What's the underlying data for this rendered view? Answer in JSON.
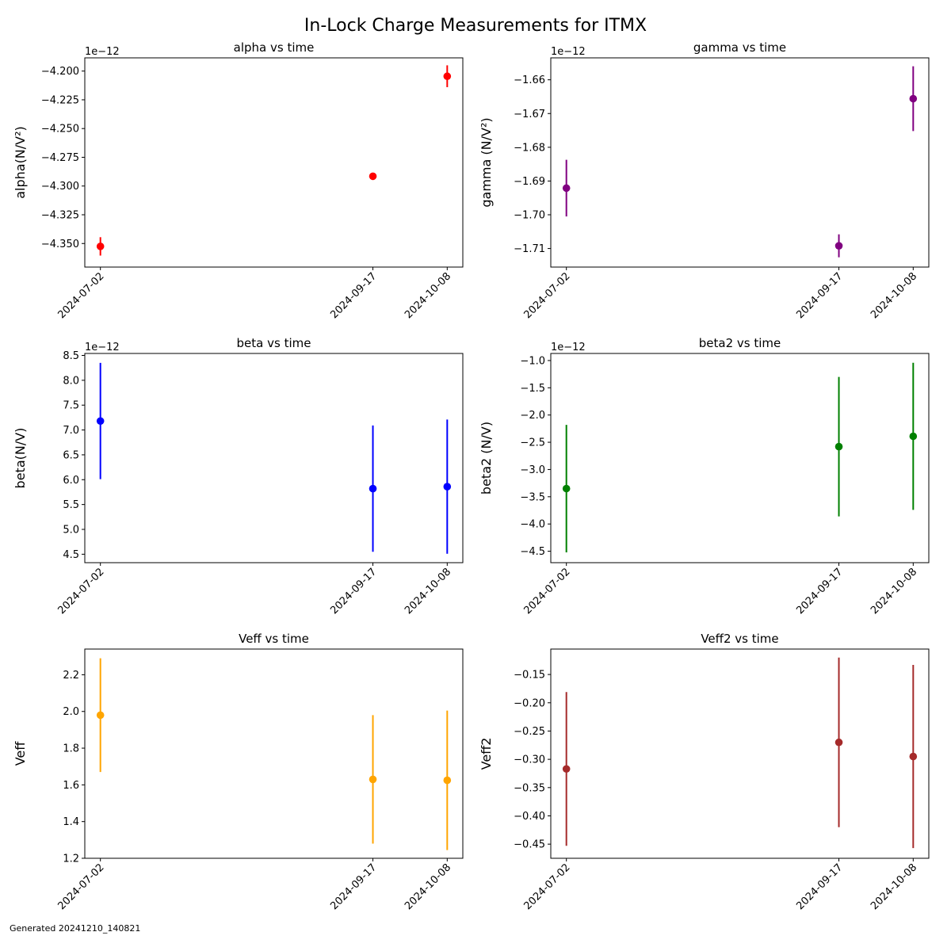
{
  "suptitle": "In-Lock Charge Measurements for ITMX",
  "footer": "Generated 20241210_140821",
  "chart_data": [
    {
      "type": "scatter",
      "title": "alpha vs time",
      "xlabel": "",
      "ylabel": "alpha(N/V²)",
      "offset_label": "1e−12",
      "color": "#ff0000",
      "x": [
        "2024-07-02",
        "2024-09-17",
        "2024-10-08"
      ],
      "y": [
        -4.3525,
        -4.2915,
        -4.2045
      ],
      "yerr": [
        0.008,
        0.003,
        0.0095
      ],
      "ylim": [
        -4.3705,
        -4.1885
      ],
      "yticks": [
        -4.35,
        -4.325,
        -4.3,
        -4.275,
        -4.25,
        -4.225,
        -4.2
      ],
      "yticklabels": [
        "−4.350",
        "−4.325",
        "−4.300",
        "−4.275",
        "−4.250",
        "−4.225",
        "−4.200"
      ]
    },
    {
      "type": "scatter",
      "title": "gamma vs time",
      "xlabel": "",
      "ylabel": "gamma (N/V²)",
      "offset_label": "1e−12",
      "color": "#800080",
      "x": [
        "2024-07-02",
        "2024-09-17",
        "2024-10-08"
      ],
      "y": [
        -1.6921,
        -1.7092,
        -1.6656
      ],
      "yerr": [
        0.0084,
        0.0034,
        0.0096
      ],
      "ylim": [
        -1.7155,
        -1.6535
      ],
      "yticks": [
        -1.71,
        -1.7,
        -1.69,
        -1.68,
        -1.67,
        -1.66
      ],
      "yticklabels": [
        "−1.71",
        "−1.70",
        "−1.69",
        "−1.68",
        "−1.67",
        "−1.66"
      ]
    },
    {
      "type": "scatter",
      "title": "beta vs time",
      "xlabel": "",
      "ylabel": "beta(N/V)",
      "offset_label": "1e−12",
      "color": "#0000ff",
      "x": [
        "2024-07-02",
        "2024-09-17",
        "2024-10-08"
      ],
      "y": [
        7.18,
        5.82,
        5.86
      ],
      "yerr": [
        1.17,
        1.27,
        1.35
      ],
      "ylim": [
        4.33,
        8.54
      ],
      "yticks": [
        4.5,
        5.0,
        5.5,
        6.0,
        6.5,
        7.0,
        7.5,
        8.0,
        8.5
      ],
      "yticklabels": [
        "4.5",
        "5.0",
        "5.5",
        "6.0",
        "6.5",
        "7.0",
        "7.5",
        "8.0",
        "8.5"
      ]
    },
    {
      "type": "scatter",
      "title": "beta2 vs time",
      "xlabel": "",
      "ylabel": "beta2 (N/V)",
      "offset_label": "1e−12",
      "color": "#008000",
      "x": [
        "2024-07-02",
        "2024-09-17",
        "2024-10-08"
      ],
      "y": [
        -3.35,
        -2.58,
        -2.39
      ],
      "yerr": [
        1.17,
        1.28,
        1.35
      ],
      "ylim": [
        -4.71,
        -0.87
      ],
      "yticks": [
        -4.5,
        -4.0,
        -3.5,
        -3.0,
        -2.5,
        -2.0,
        -1.5,
        -1.0
      ],
      "yticklabels": [
        "−4.5",
        "−4.0",
        "−3.5",
        "−3.0",
        "−2.5",
        "−2.0",
        "−1.5",
        "−1.0"
      ]
    },
    {
      "type": "scatter",
      "title": "Veff vs time",
      "xlabel": "",
      "ylabel": "Veff",
      "offset_label": "",
      "color": "#ffa500",
      "x": [
        "2024-07-02",
        "2024-09-17",
        "2024-10-08"
      ],
      "y": [
        1.98,
        1.63,
        1.625
      ],
      "yerr": [
        0.31,
        0.35,
        0.38
      ],
      "ylim": [
        1.2,
        2.34
      ],
      "yticks": [
        1.2,
        1.4,
        1.6,
        1.8,
        2.0,
        2.2
      ],
      "yticklabels": [
        "1.2",
        "1.4",
        "1.6",
        "1.8",
        "2.0",
        "2.2"
      ]
    },
    {
      "type": "scatter",
      "title": "Veff2 vs time",
      "xlabel": "",
      "ylabel": "Veff2",
      "offset_label": "",
      "color": "#a52a2a",
      "x": [
        "2024-07-02",
        "2024-09-17",
        "2024-10-08"
      ],
      "y": [
        -0.317,
        -0.27,
        -0.295
      ],
      "yerr": [
        0.136,
        0.15,
        0.162
      ],
      "ylim": [
        -0.475,
        -0.105
      ],
      "yticks": [
        -0.45,
        -0.4,
        -0.35,
        -0.3,
        -0.25,
        -0.2,
        -0.15
      ],
      "yticklabels": [
        "−0.45",
        "−0.40",
        "−0.35",
        "−0.30",
        "−0.25",
        "−0.20",
        "−0.15"
      ]
    }
  ]
}
